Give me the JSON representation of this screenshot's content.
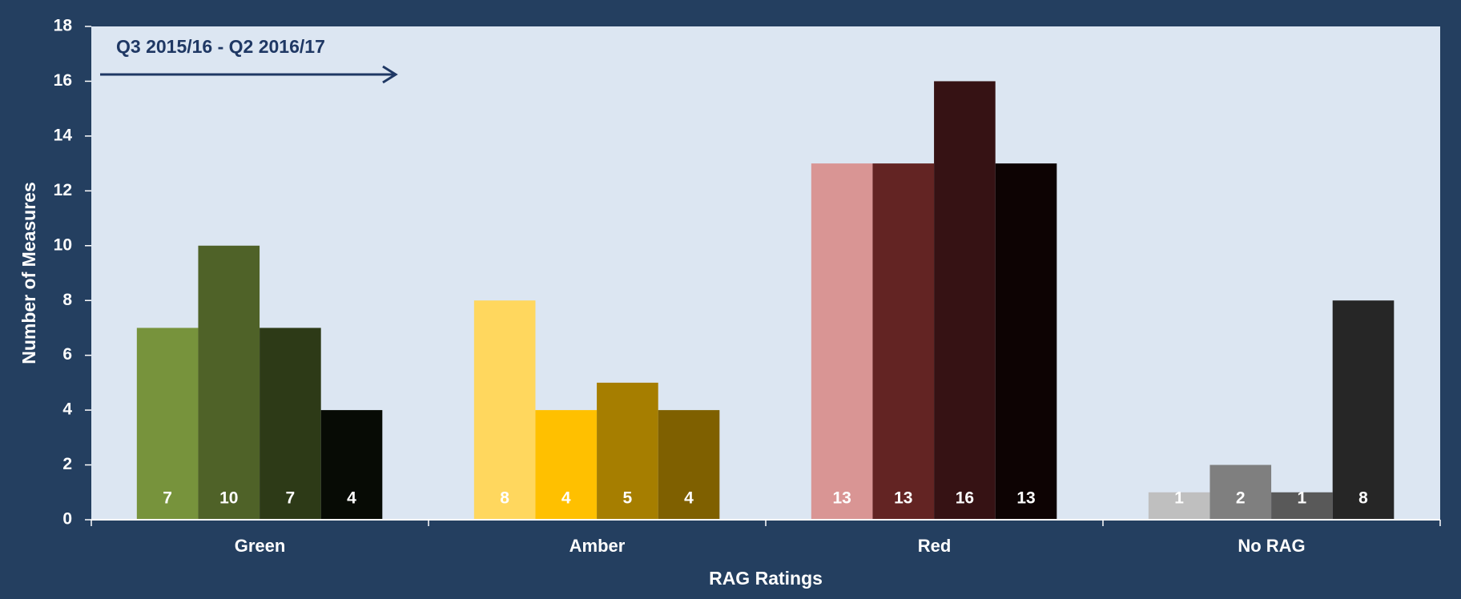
{
  "chart_data": {
    "type": "bar",
    "annotation": "Q3 2015/16 - Q2 2016/17",
    "x_label": "RAG Ratings",
    "y_label": "Number of Measures",
    "categories": [
      "Green",
      "Amber",
      "Red",
      "No RAG"
    ],
    "series": [
      {
        "values": [
          7,
          8,
          13,
          1
        ],
        "colors": [
          "#77933c",
          "#ffd75e",
          "#d99594",
          "#bfbfbf"
        ]
      },
      {
        "values": [
          10,
          4,
          13,
          2
        ],
        "colors": [
          "#4f6228",
          "#ffc000",
          "#632423",
          "#7f7f7f"
        ]
      },
      {
        "values": [
          7,
          5,
          16,
          1
        ],
        "colors": [
          "#2d3a17",
          "#a67e00",
          "#361214",
          "#595959"
        ]
      },
      {
        "values": [
          4,
          4,
          13,
          8
        ],
        "colors": [
          "#070b05",
          "#7f6000",
          "#0d0303",
          "#262626"
        ]
      }
    ],
    "ylim": [
      0,
      18
    ],
    "yticks": [
      0,
      2,
      4,
      6,
      8,
      10,
      12,
      14,
      16,
      18
    ],
    "grid": false
  }
}
